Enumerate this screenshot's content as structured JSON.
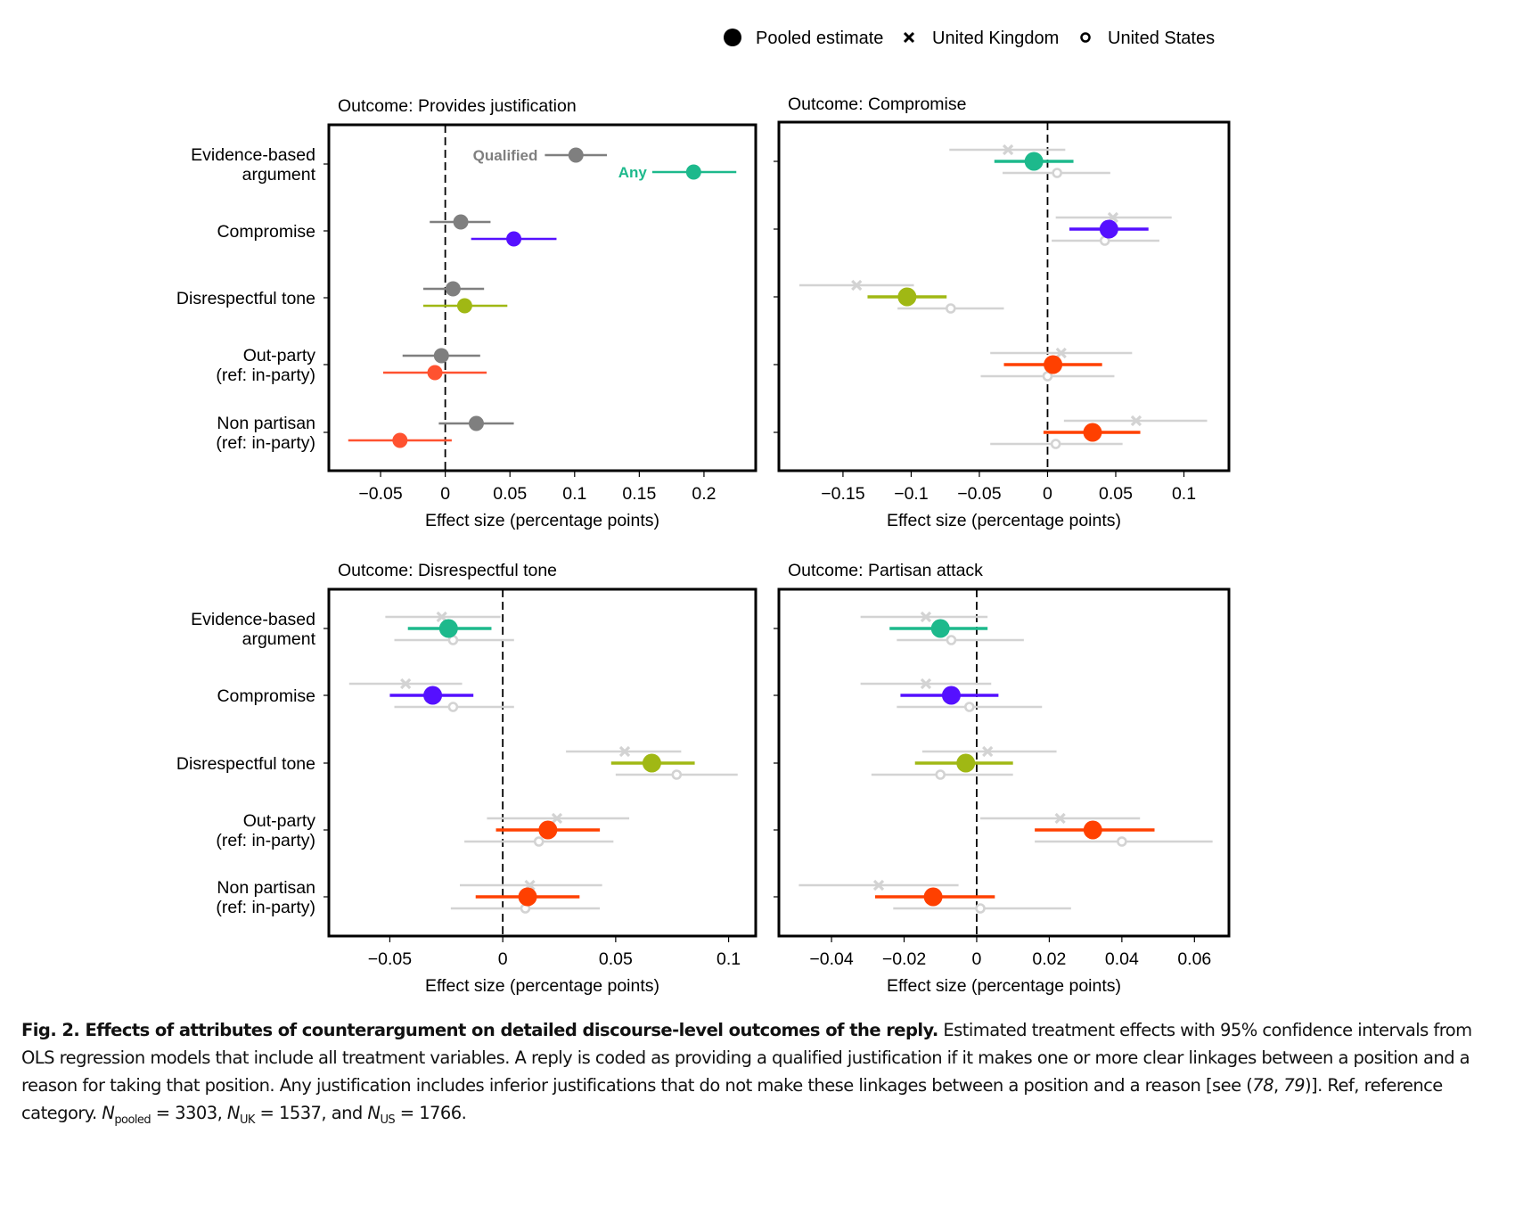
{
  "legend": {
    "items": [
      {
        "label": "Pooled estimate",
        "marker": "filled-circle-icon"
      },
      {
        "label": "United Kingdom",
        "marker": "x-icon"
      },
      {
        "label": "United States",
        "marker": "open-circle-icon"
      }
    ]
  },
  "colors": {
    "qualified": "#7f7f7f",
    "evidence": "#1db98c",
    "compromise": "#5510ff",
    "disrespectful": "#a0b814",
    "partisan_any": "#ff5230",
    "partisan_pooled": "#ff4000",
    "country": "#d3d3d3"
  },
  "chart_data": [
    {
      "type": "scatter",
      "title": "Outcome: Provides justification",
      "xlabel": "Effect size (percentage points)",
      "ylabel": "",
      "xlim": [
        -0.09,
        0.24
      ],
      "xticks": [
        -0.05,
        0,
        0.05,
        0.1,
        0.15,
        0.2
      ],
      "xtick_labels": [
        "−0.05",
        "0",
        "0.05",
        "0.1",
        "0.15",
        "0.2"
      ],
      "categories": [
        "Evidence-based\nargument",
        "Compromise",
        "Disrespectful tone",
        "Out-party\n(ref: in-party)",
        "Non partisan\n(ref: in-party)"
      ],
      "annotations": [
        {
          "text": "Qualified",
          "series": "Qualified"
        },
        {
          "text": "Any",
          "series": "Any"
        }
      ],
      "series": [
        {
          "name": "Qualified",
          "color_key": "qualified",
          "values": [
            0.101,
            0.012,
            0.006,
            -0.003,
            0.024
          ],
          "ci_low": [
            0.077,
            -0.012,
            -0.017,
            -0.033,
            -0.005
          ],
          "ci_high": [
            0.125,
            0.035,
            0.03,
            0.027,
            0.053
          ]
        },
        {
          "name": "Any",
          "color_keys": [
            "evidence",
            "compromise",
            "disrespectful",
            "partisan_any",
            "partisan_any"
          ],
          "values": [
            0.192,
            0.053,
            0.015,
            -0.008,
            -0.035
          ],
          "ci_low": [
            0.16,
            0.02,
            -0.017,
            -0.048,
            -0.075
          ],
          "ci_high": [
            0.225,
            0.086,
            0.048,
            0.032,
            0.005
          ]
        }
      ]
    },
    {
      "type": "scatter",
      "title": "Outcome: Compromise",
      "xlabel": "Effect size (percentage points)",
      "xlim": [
        -0.197,
        0.133
      ],
      "xticks": [
        -0.15,
        -0.1,
        -0.05,
        0,
        0.05,
        0.1
      ],
      "xtick_labels": [
        "−0.15",
        "−0.1",
        "−0.05",
        "0",
        "0.05",
        "0.1"
      ],
      "categories": [
        "Evidence-based\nargument",
        "Compromise",
        "Disrespectful tone",
        "Out-party\n(ref: in-party)",
        "Non partisan\n(ref: in-party)"
      ],
      "series": [
        {
          "name": "Pooled estimate",
          "values": [
            -0.01,
            0.045,
            -0.103,
            0.004,
            0.033
          ],
          "ci_low": [
            -0.039,
            0.016,
            -0.132,
            -0.032,
            -0.003
          ],
          "ci_high": [
            0.019,
            0.074,
            -0.074,
            0.04,
            0.068
          ]
        },
        {
          "name": "United Kingdom",
          "values": [
            -0.029,
            0.048,
            -0.14,
            0.01,
            0.065
          ],
          "ci_low": [
            -0.072,
            0.006,
            -0.182,
            -0.042,
            0.012
          ],
          "ci_high": [
            0.013,
            0.091,
            -0.098,
            0.062,
            0.117
          ]
        },
        {
          "name": "United States",
          "values": [
            0.007,
            0.042,
            -0.071,
            0.0,
            0.006
          ],
          "ci_low": [
            -0.033,
            0.003,
            -0.11,
            -0.049,
            -0.042
          ],
          "ci_high": [
            0.046,
            0.082,
            -0.032,
            0.049,
            0.055
          ]
        }
      ]
    },
    {
      "type": "scatter",
      "title": "Outcome: Disrespectful tone",
      "xlabel": "Effect size (percentage points)",
      "xlim": [
        -0.077,
        0.112
      ],
      "xticks": [
        -0.05,
        0,
        0.05,
        0.1
      ],
      "xtick_labels": [
        "−0.05",
        "0",
        "0.05",
        "0.1"
      ],
      "categories": [
        "Evidence-based\nargument",
        "Compromise",
        "Disrespectful tone",
        "Out-party\n(ref: in-party)",
        "Non partisan\n(ref: in-party)"
      ],
      "series": [
        {
          "name": "Pooled estimate",
          "values": [
            -0.024,
            -0.031,
            0.066,
            0.02,
            0.011
          ],
          "ci_low": [
            -0.042,
            -0.05,
            0.048,
            -0.003,
            -0.012
          ],
          "ci_high": [
            -0.005,
            -0.013,
            0.085,
            0.043,
            0.034
          ]
        },
        {
          "name": "United Kingdom",
          "values": [
            -0.027,
            -0.043,
            0.054,
            0.024,
            0.012
          ],
          "ci_low": [
            -0.052,
            -0.068,
            0.028,
            -0.007,
            -0.019
          ],
          "ci_high": [
            -0.001,
            -0.018,
            0.079,
            0.056,
            0.044
          ]
        },
        {
          "name": "United States",
          "values": [
            -0.022,
            -0.022,
            0.077,
            0.016,
            0.01
          ],
          "ci_low": [
            -0.048,
            -0.048,
            0.05,
            -0.017,
            -0.023
          ],
          "ci_high": [
            0.005,
            0.005,
            0.104,
            0.049,
            0.043
          ]
        }
      ]
    },
    {
      "type": "scatter",
      "title": "Outcome: Partisan attack",
      "xlabel": "Effect size (percentage points)",
      "xlim": [
        -0.0545,
        0.0695
      ],
      "xticks": [
        -0.04,
        -0.02,
        0,
        0.02,
        0.04,
        0.06
      ],
      "xtick_labels": [
        "−0.04",
        "−0.02",
        "0",
        "0.02",
        "0.04",
        "0.06"
      ],
      "categories": [
        "Evidence-based\nargument",
        "Compromise",
        "Disrespectful tone",
        "Out-party\n(ref: in-party)",
        "Non partisan\n(ref: in-party)"
      ],
      "series": [
        {
          "name": "Pooled estimate",
          "values": [
            -0.01,
            -0.007,
            -0.003,
            0.032,
            -0.012
          ],
          "ci_low": [
            -0.024,
            -0.021,
            -0.017,
            0.016,
            -0.028
          ],
          "ci_high": [
            0.003,
            0.006,
            0.01,
            0.049,
            0.005
          ]
        },
        {
          "name": "United Kingdom",
          "values": [
            -0.014,
            -0.014,
            0.003,
            0.023,
            -0.027
          ],
          "ci_low": [
            -0.032,
            -0.032,
            -0.015,
            0.001,
            -0.049
          ],
          "ci_high": [
            0.003,
            0.004,
            0.022,
            0.045,
            -0.005
          ]
        },
        {
          "name": "United States",
          "values": [
            -0.007,
            -0.002,
            -0.01,
            0.04,
            0.001
          ],
          "ci_low": [
            -0.022,
            -0.022,
            -0.029,
            0.016,
            -0.023
          ],
          "ci_high": [
            0.013,
            0.018,
            0.01,
            0.065,
            0.026
          ]
        }
      ]
    }
  ],
  "caption": {
    "bold": "Fig. 2. Effects of attributes of counterargument on detailed discourse-level outcomes of the reply.",
    "text1": " Estimated treatment effects with 95% confidence intervals from OLS regression models that include all treatment variables. A reply is coded as providing a qualified justification if it makes one or more clear linkages between a position and a reason for taking that position. Any justification includes inferior justifications that do not make these linkages between a position and a reason [see (",
    "ref1": "78",
    "sep": ", ",
    "ref2": "79",
    "text2": ")]. Ref, reference category. ",
    "n_label": "N",
    "n_pooled_sub": "pooled",
    "n_pooled": " = 3303, ",
    "n_uk_sub": "UK",
    "n_uk": " = 1537, and ",
    "n_us_sub": "US",
    "n_us": " = 1766."
  }
}
